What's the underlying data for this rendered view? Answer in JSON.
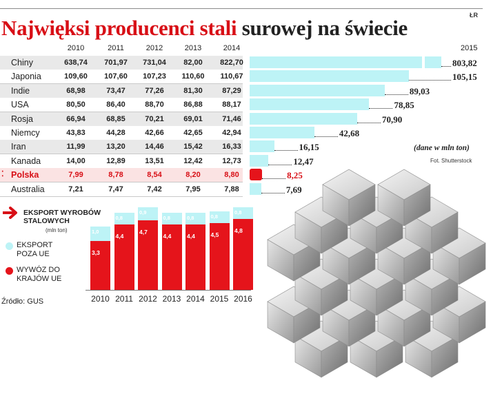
{
  "header": {
    "logo": "ŁR",
    "title_red": "Najwięksi producenci stali",
    "title_black": "surowej na świecie"
  },
  "table": {
    "years": [
      "2010",
      "2011",
      "2012",
      "2013",
      "2014"
    ],
    "rows": [
      {
        "country": "Chiny",
        "values": [
          "638,74",
          "701,97",
          "731,04",
          "82,00",
          "822,70"
        ]
      },
      {
        "country": "Japonia",
        "values": [
          "109,60",
          "107,60",
          "107,23",
          "110,60",
          "110,67"
        ]
      },
      {
        "country": "Indie",
        "values": [
          "68,98",
          "73,47",
          "77,26",
          "81,30",
          "87,29"
        ]
      },
      {
        "country": "USA",
        "values": [
          "80,50",
          "86,40",
          "88,70",
          "86,88",
          "88,17"
        ]
      },
      {
        "country": "Rosja",
        "values": [
          "66,94",
          "68,85",
          "70,21",
          "69,01",
          "71,46"
        ]
      },
      {
        "country": "Niemcy",
        "values": [
          "43,83",
          "44,28",
          "42,66",
          "42,65",
          "42,94"
        ]
      },
      {
        "country": "Iran",
        "values": [
          "11,99",
          "13,20",
          "14,46",
          "15,42",
          "16,33"
        ]
      },
      {
        "country": "Kanada",
        "values": [
          "14,00",
          "12,89",
          "13,51",
          "12,42",
          "12,73"
        ]
      },
      {
        "country": "Polska",
        "values": [
          "7,99",
          "8,78",
          "8,54",
          "8,20",
          "8,80"
        ]
      },
      {
        "country": "Australia",
        "values": [
          "7,21",
          "7,47",
          "7,42",
          "7,95",
          "7,88"
        ]
      }
    ],
    "highlight_marker": "⁚"
  },
  "production_2015": {
    "year_label": "2015",
    "unit_note": "(dane w mln ton)",
    "photo_credit": "Fot. Shutterstock",
    "labels": [
      "803,82",
      "105,15",
      "89,03",
      "78,85",
      "70,90",
      "42,68",
      "16,15",
      "12,47",
      "8,25",
      "7,69"
    ]
  },
  "export": {
    "title_line1": "Eksport wyrobów",
    "title_line2": "stalowych",
    "unit": "(mln ton)",
    "legend": [
      {
        "label_line1": "EKSPORT",
        "label_line2": "POZA UE",
        "color": "#bdf3f6"
      },
      {
        "label_line1": "WYWÓZ DO",
        "label_line2": "KRAJÓW UE",
        "color": "#e5141b"
      }
    ],
    "source": "Źródło: GUS",
    "years": [
      "2010",
      "2011",
      "2012",
      "2013",
      "2014",
      "2015",
      "2016"
    ],
    "eu_labels": [
      "3,3",
      "4,4",
      "4,7",
      "4,4",
      "4,4",
      "4,5",
      "4,8"
    ],
    "non_eu_labels": [
      "1,0",
      "0,8",
      "0,9",
      "0,8",
      "0,8",
      "0,8",
      "0,8"
    ]
  },
  "chart_data": [
    {
      "type": "bar",
      "title": "Największi producenci stali surowej na świecie",
      "subtitle": "2015",
      "unit": "dane w mln ton",
      "categories": [
        "Chiny",
        "Japonia",
        "Indie",
        "USA",
        "Rosja",
        "Niemcy",
        "Iran",
        "Kanada",
        "Polska",
        "Australia"
      ],
      "values": [
        803.82,
        105.15,
        89.03,
        78.85,
        70.9,
        42.68,
        16.15,
        12.47,
        8.25,
        7.69
      ],
      "colors": {
        "bar": "#bdf3f6",
        "highlight": "#e5141b"
      },
      "highlight_category": "Polska",
      "axis_break": true
    },
    {
      "type": "bar",
      "title": "Eksport wyrobów stalowych",
      "unit": "mln ton",
      "stacked": true,
      "categories": [
        "2010",
        "2011",
        "2012",
        "2013",
        "2014",
        "2015",
        "2016"
      ],
      "series": [
        {
          "name": "WYWÓZ DO KRAJÓW UE",
          "values": [
            3.3,
            4.4,
            4.7,
            4.4,
            4.4,
            4.5,
            4.8
          ],
          "color": "#e5141b"
        },
        {
          "name": "EKSPORT POZA UE",
          "values": [
            1.0,
            0.8,
            0.9,
            0.8,
            0.8,
            0.8,
            0.8
          ],
          "color": "#bdf3f6"
        }
      ],
      "ylim": [
        0,
        6
      ]
    }
  ]
}
